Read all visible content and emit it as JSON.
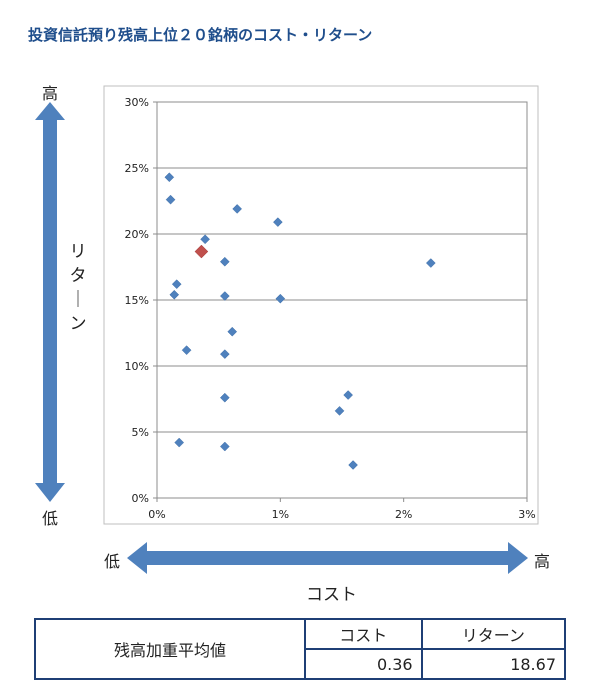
{
  "title": "投資信託預り残高上位２０銘柄のコスト・リターン",
  "arrows": {
    "y_high": "高",
    "y_low": "低",
    "y_label": "リターン",
    "x_low": "低",
    "x_high": "高",
    "x_label": "コスト"
  },
  "summary": {
    "row_label": "残高加重平均値",
    "col_cost": "コスト",
    "col_return": "リターン",
    "cost_value": "0.36",
    "return_value": "18.67"
  },
  "colors": {
    "point": "#4f81bd",
    "highlight": "#c0504d",
    "arrow": "#4f81bd",
    "title": "#1f4e8c"
  },
  "chart_data": {
    "type": "scatter",
    "title": "",
    "xlabel": "コスト",
    "ylabel": "リターン",
    "xlim": [
      0,
      3
    ],
    "ylim": [
      0,
      30
    ],
    "xticks": [
      "0%",
      "1%",
      "2%",
      "3%"
    ],
    "yticks": [
      "0%",
      "5%",
      "10%",
      "15%",
      "20%",
      "25%",
      "30%"
    ],
    "grid": "horizontal",
    "series": [
      {
        "points": [
          [
            0.1,
            24.3
          ],
          [
            0.11,
            22.6
          ],
          [
            0.65,
            21.9
          ],
          [
            0.39,
            19.6
          ],
          [
            0.98,
            20.9
          ],
          [
            0.55,
            17.9
          ],
          [
            0.16,
            16.2
          ],
          [
            0.14,
            15.4
          ],
          [
            0.55,
            15.3
          ],
          [
            1.0,
            15.1
          ],
          [
            2.22,
            17.8
          ],
          [
            0.61,
            12.6
          ],
          [
            0.24,
            11.2
          ],
          [
            0.55,
            10.9
          ],
          [
            0.55,
            7.6
          ],
          [
            1.55,
            7.8
          ],
          [
            1.48,
            6.6
          ],
          [
            0.18,
            4.2
          ],
          [
            0.55,
            3.9
          ],
          [
            1.59,
            2.5
          ]
        ]
      },
      {
        "highlight": true,
        "points": [
          [
            0.36,
            18.67
          ]
        ]
      }
    ]
  }
}
